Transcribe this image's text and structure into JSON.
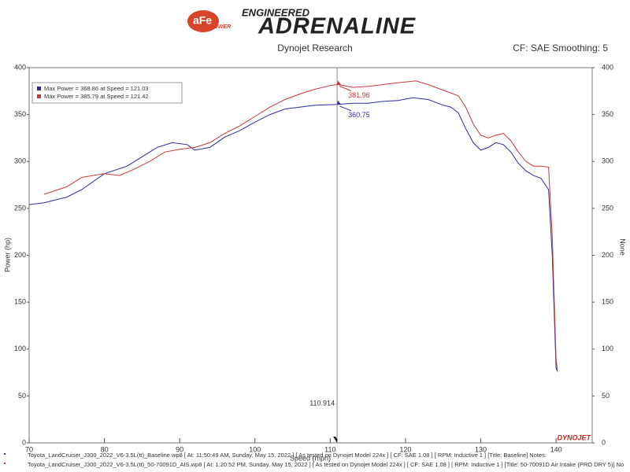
{
  "logo": {
    "brand": "aFe",
    "brand_sub": "POWER",
    "tagline": "ENGINEERED",
    "name": "ADRENALINE"
  },
  "chart_data": {
    "type": "line",
    "title": "Dynojet Research",
    "subtitle": "CF: SAE Smoothing: 5",
    "x_label": "Speed (mph)",
    "y_label": "Power (hp)",
    "y2_label": "None",
    "brand_mark": "DYNOJET",
    "xlim": [
      70,
      144.8
    ],
    "xticks": [
      70,
      80,
      90,
      100,
      110,
      120,
      130,
      140
    ],
    "ylim": [
      0,
      400
    ],
    "yticks": [
      0,
      50,
      100,
      150,
      200,
      250,
      300,
      350,
      400
    ],
    "y2lim": [
      0,
      400
    ],
    "y2ticks": [
      0,
      50,
      100,
      150,
      200,
      250,
      300,
      350,
      400
    ],
    "grid": false,
    "legend": "upper left",
    "series": [
      {
        "name": "Max Power = 368.86 at Speed = 121.03",
        "color": "#2b2b9e",
        "x": [
          70,
          72,
          75,
          77,
          80,
          83,
          85,
          87,
          89,
          91,
          92,
          94,
          96,
          98,
          100,
          102,
          104,
          106,
          108,
          111,
          113,
          115,
          117,
          119,
          121,
          123,
          125,
          126,
          127,
          128,
          129,
          130,
          131,
          132,
          133,
          134,
          135,
          136,
          137,
          138,
          139,
          139.5,
          140,
          140.2
        ],
        "values": [
          254,
          256,
          262,
          270,
          287,
          295,
          305,
          315,
          320,
          318,
          312,
          315,
          326,
          333,
          342,
          350,
          356,
          358,
          360,
          360.75,
          362,
          362,
          364,
          365,
          368,
          366,
          360,
          358,
          352,
          335,
          320,
          312,
          315,
          320,
          318,
          310,
          298,
          290,
          285,
          282,
          270,
          200,
          80,
          76
        ]
      },
      {
        "name": "Max Power = 385.79 at Speed = 121.42",
        "color": "#c83a3a",
        "x": [
          72,
          75,
          77,
          80,
          82,
          84,
          86,
          88,
          90,
          92,
          94,
          96,
          98,
          100,
          102,
          104,
          106,
          108,
          110,
          111,
          113,
          115,
          117,
          119,
          121.4,
          123,
          125,
          127,
          128,
          129,
          130,
          131,
          132,
          133,
          134,
          135,
          136,
          137,
          138,
          139,
          139.5,
          140,
          140.2
        ],
        "values": [
          265,
          273,
          283,
          287,
          285,
          292,
          300,
          310,
          313,
          315,
          320,
          330,
          338,
          348,
          358,
          366,
          372,
          377,
          381,
          381.96,
          379,
          380,
          382,
          384,
          385.79,
          382,
          376,
          370,
          358,
          340,
          328,
          325,
          328,
          330,
          322,
          310,
          300,
          295,
          295,
          294,
          220,
          90,
          76
        ]
      }
    ],
    "cursor": {
      "x": 110.914,
      "values": [
        360.75,
        381.96
      ]
    },
    "footnotes": [
      "Toyota_LandCruiser_J300_2022_V6-3.5L(tt)_Baseline.wp8 [ At: 11:50:49 AM, Sunday, May 15, 2022 ] [ As tested on Dynojet Model 224x ] [ CF: SAE 1.08 ] [ RPM: Inductive 1 ] [Title: Baseline]  Notes:",
      "Toyota_LandCruiser_J300_2022_V6-3.5L(tt)_50-70091D_AIS.wp8 [ At: 1:20:52 PM, Sunday, May 15, 2022 ] [ As tested on Dynojet Model 224x ] [ CF: SAE 1.08 ] [ RPM: Inductive 1 ] [Title: 50-70091D Air Intake (PRO DRY 5)]  No"
    ]
  }
}
